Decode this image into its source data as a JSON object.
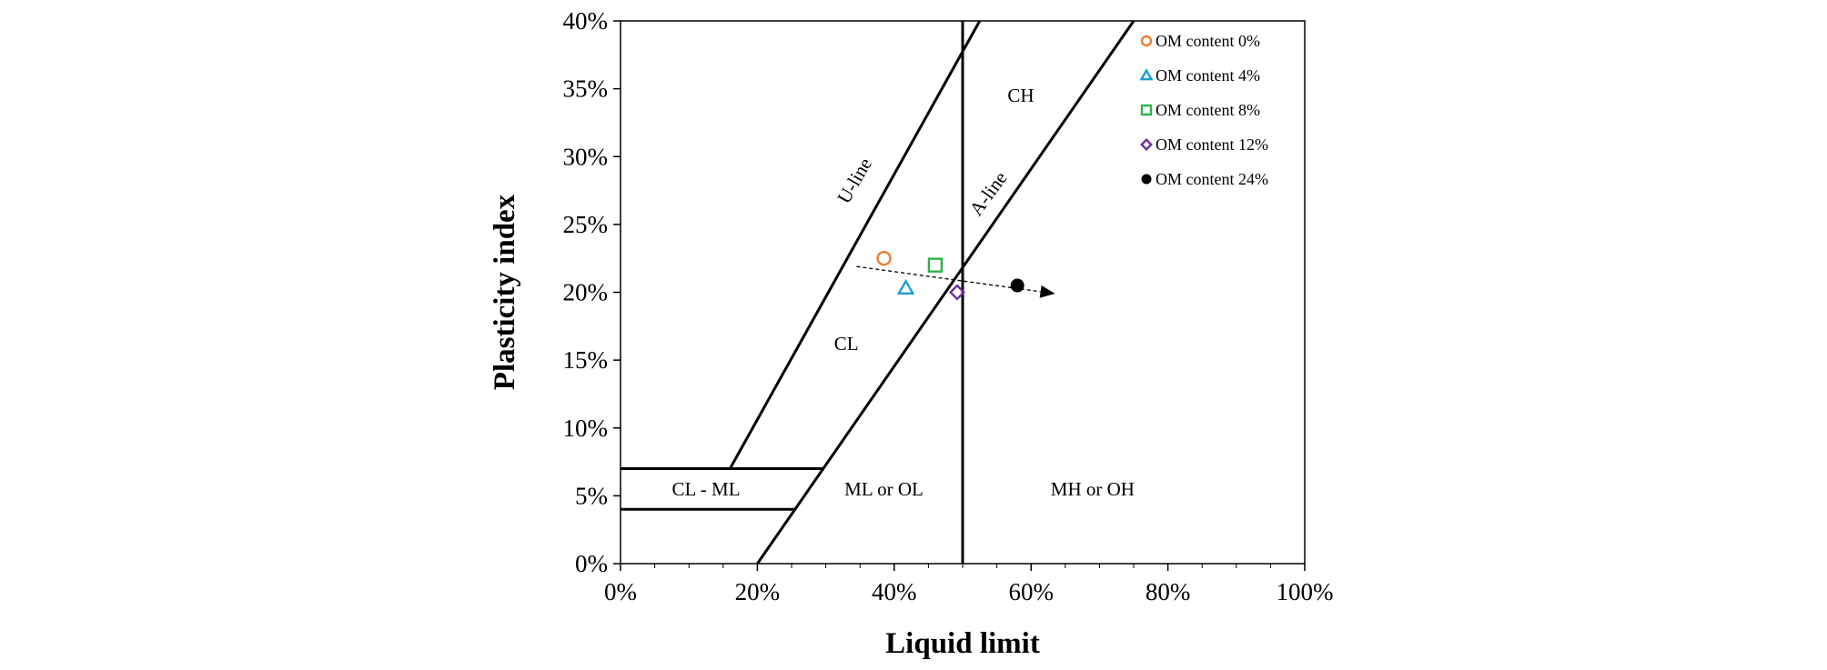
{
  "chart_data": {
    "type": "scatter",
    "title": "",
    "xlabel": "Liquid limit",
    "ylabel": "Plasticity index",
    "xlim": [
      0,
      1
    ],
    "ylim": [
      0,
      0.4
    ],
    "xticks": [
      0,
      0.2,
      0.4,
      0.6,
      0.8,
      1.0
    ],
    "xtick_labels": [
      "0%",
      "20%",
      "40%",
      "60%",
      "80%",
      "100%"
    ],
    "yticks": [
      0,
      0.05,
      0.1,
      0.15,
      0.2,
      0.25,
      0.3,
      0.35,
      0.4
    ],
    "ytick_labels": [
      "0%",
      "5%",
      "10%",
      "15%",
      "20%",
      "25%",
      "30%",
      "35%",
      "40%"
    ],
    "grid": false,
    "legend_position": "top-right",
    "series": [
      {
        "name": "OM content 0%",
        "marker": "circle-open",
        "color": "#ED7D31",
        "x": [
          0.385
        ],
        "y": [
          0.225
        ]
      },
      {
        "name": "OM content 4%",
        "marker": "triangle-open",
        "color": "#1E9BD7",
        "x": [
          0.417
        ],
        "y": [
          0.203
        ]
      },
      {
        "name": "OM content 8%",
        "marker": "square-open",
        "color": "#2DB24A",
        "x": [
          0.46
        ],
        "y": [
          0.22
        ]
      },
      {
        "name": "OM content 12%",
        "marker": "diamond-open",
        "color": "#7030A0",
        "x": [
          0.492
        ],
        "y": [
          0.2
        ]
      },
      {
        "name": "OM content 24%",
        "marker": "circle-filled",
        "color": "#000000",
        "x": [
          0.58
        ],
        "y": [
          0.205
        ]
      }
    ],
    "reference_lines": [
      {
        "name": "U-line",
        "points": [
          [
            0.16,
            0.07
          ],
          [
            0.525,
            0.4
          ]
        ]
      },
      {
        "name": "A-line",
        "points": [
          [
            0.2,
            0
          ],
          [
            0.75,
            0.4
          ]
        ]
      },
      {
        "name": "LL = 50%",
        "points": [
          [
            0.5,
            0
          ],
          [
            0.5,
            0.4
          ]
        ]
      },
      {
        "name": "PI = 7%",
        "points": [
          [
            0,
            0.07
          ],
          [
            0.296,
            0.07
          ]
        ]
      },
      {
        "name": "PI = 4%",
        "points": [
          [
            0,
            0.04
          ],
          [
            0.255,
            0.04
          ]
        ]
      }
    ],
    "trend_arrow": {
      "from": [
        0.345,
        0.219
      ],
      "to": [
        0.635,
        0.199
      ]
    },
    "line_labels": [
      {
        "text": "U-line",
        "x": 0.35,
        "y": 0.28,
        "angle": -60
      },
      {
        "text": "A-line",
        "x": 0.545,
        "y": 0.27,
        "angle": -54
      }
    ],
    "region_labels": [
      {
        "text": "CH",
        "x": 0.585,
        "y": 0.345
      },
      {
        "text": "CL",
        "x": 0.33,
        "y": 0.162
      },
      {
        "text": "CL - ML",
        "x": 0.125,
        "y": 0.055
      },
      {
        "text": "ML or OL",
        "x": 0.385,
        "y": 0.055
      },
      {
        "text": "MH or OH",
        "x": 0.69,
        "y": 0.055
      }
    ]
  }
}
